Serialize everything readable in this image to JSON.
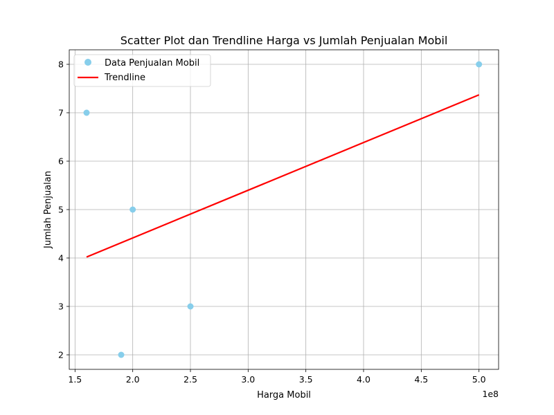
{
  "chart_data": {
    "type": "scatter",
    "title": "Scatter Plot dan Trendline Harga vs Jumlah Penjualan Mobil",
    "xlabel": "Harga Mobil",
    "ylabel": "Jumlah Penjualan",
    "x_offset_text": "1e8",
    "xlim": [
      1.45,
      5.17
    ],
    "ylim": [
      1.7,
      8.3
    ],
    "x_ticks": [
      1.5,
      2.0,
      2.5,
      3.0,
      3.5,
      4.0,
      4.5,
      5.0
    ],
    "x_tick_labels": [
      "1.5",
      "2.0",
      "2.5",
      "3.0",
      "3.5",
      "4.0",
      "4.5",
      "5.0"
    ],
    "y_ticks": [
      2,
      3,
      4,
      5,
      6,
      7,
      8
    ],
    "y_tick_labels": [
      "2",
      "3",
      "4",
      "5",
      "6",
      "7",
      "8"
    ],
    "grid": true,
    "legend_position": "top-left",
    "series": [
      {
        "name": "Data Penjualan Mobil",
        "kind": "scatter",
        "color": "#87ceeb",
        "points": [
          {
            "x": 1.6,
            "y": 7
          },
          {
            "x": 1.9,
            "y": 2
          },
          {
            "x": 2.0,
            "y": 5
          },
          {
            "x": 2.5,
            "y": 3
          },
          {
            "x": 5.0,
            "y": 8
          }
        ]
      },
      {
        "name": "Trendline",
        "kind": "line",
        "color": "#ff0000",
        "points": [
          {
            "x": 1.6,
            "y": 4.02
          },
          {
            "x": 5.0,
            "y": 7.37
          }
        ]
      }
    ]
  }
}
